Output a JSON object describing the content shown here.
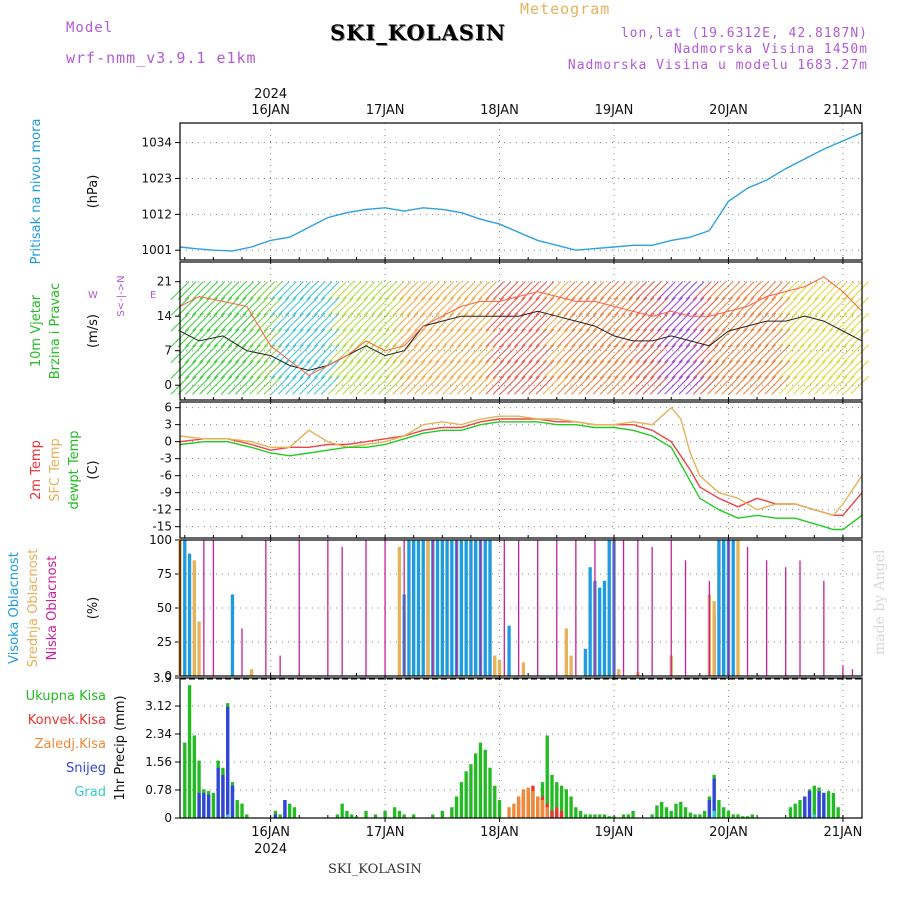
{
  "header": {
    "model_label": "Model",
    "model_name": "wrf-nmm_v3.9.1 e1km",
    "title": "SKI_KOLASIN",
    "meteogram_label": "Meteogram",
    "lonlat": "lon,lat (19.6312E, 42.8187N)",
    "elevation": "Nadmorska Visina 1450m",
    "model_elevation": "Nadmorska Visina u modelu 1683.27m"
  },
  "footer": {
    "station": "SKI_KOLASIN",
    "credit": "made by Angel"
  },
  "time_axis": {
    "year": "2024",
    "days": [
      "16JAN",
      "17JAN",
      "18JAN",
      "19JAN",
      "20JAN",
      "21JAN"
    ],
    "start_hour": -19,
    "end_hour": 124
  },
  "chart_data": [
    {
      "type": "line",
      "id": "pressure",
      "ylabel": "(hPa)",
      "side_labels": [
        {
          "text": "Pritisak na nivou mora",
          "color": "#1f9ce0"
        }
      ],
      "ylim": [
        998,
        1040
      ],
      "yticks": [
        "1001",
        "1012",
        "1023",
        "1034"
      ],
      "grid": true,
      "series": [
        {
          "color": "#2ea0e0",
          "x": [
            -19,
            -16,
            -12,
            -8,
            -4,
            0,
            4,
            8,
            12,
            16,
            20,
            24,
            28,
            32,
            36,
            40,
            44,
            48,
            52,
            56,
            60,
            64,
            68,
            72,
            76,
            80,
            84,
            88,
            92,
            96,
            100,
            104,
            108,
            112,
            116,
            120,
            124
          ],
          "y": [
            1002,
            1001.5,
            1001,
            1000.8,
            1002,
            1004,
            1005,
            1008,
            1011,
            1012.5,
            1013.5,
            1014,
            1013,
            1014,
            1013.5,
            1012.5,
            1010.5,
            1009,
            1006.5,
            1004,
            1002.5,
            1001,
            1001.5,
            1002,
            1002.5,
            1002.5,
            1004,
            1005,
            1007,
            1016,
            1020,
            1022.5,
            1026,
            1029,
            1032,
            1034.5,
            1037
          ]
        }
      ]
    },
    {
      "type": "line",
      "id": "wind",
      "ylabel": "(m/s)",
      "side_labels": [
        {
          "text": "10m Vjetar",
          "color": "#22bb22"
        },
        {
          "text": "Brzina i Pravac",
          "color": "#22bb22"
        }
      ],
      "legend_compass": {
        "n": "N",
        "e": "E",
        "w": "W",
        "s": "S",
        "mid": "<-|->"
      },
      "ylim": [
        -3,
        25
      ],
      "yticks": [
        "0",
        "7",
        "14",
        "21"
      ],
      "grid": true,
      "series": [
        {
          "color": "#222222",
          "x": [
            -19,
            -15,
            -10,
            -5,
            0,
            4,
            8,
            12,
            16,
            20,
            24,
            28,
            32,
            36,
            40,
            44,
            48,
            52,
            56,
            60,
            64,
            68,
            72,
            76,
            80,
            84,
            88,
            92,
            96,
            100,
            104,
            108,
            112,
            116,
            120,
            124
          ],
          "y": [
            11,
            9,
            10,
            7,
            6,
            4,
            3,
            4,
            6,
            8,
            6,
            7,
            12,
            13,
            14,
            14,
            14,
            14,
            15,
            14,
            13,
            12,
            10,
            9,
            9,
            10,
            9,
            8,
            11,
            12,
            13,
            13,
            14,
            13,
            11,
            9
          ]
        },
        {
          "color": "#ff6040",
          "x": [
            -19,
            -15,
            -10,
            -5,
            0,
            4,
            8,
            12,
            16,
            20,
            24,
            28,
            32,
            36,
            40,
            44,
            48,
            52,
            56,
            60,
            64,
            68,
            72,
            76,
            80,
            84,
            88,
            92,
            96,
            100,
            104,
            108,
            112,
            116,
            120,
            124
          ],
          "y": [
            16,
            18,
            17,
            16,
            8,
            5,
            2,
            4,
            6,
            9,
            7,
            8,
            12,
            14,
            16,
            17,
            17,
            18,
            19,
            18,
            17,
            17,
            16,
            15,
            14,
            15,
            14,
            14,
            15,
            16,
            18,
            19,
            20,
            22,
            19,
            15
          ]
        }
      ]
    },
    {
      "type": "line",
      "id": "temperature",
      "ylabel": "(C)",
      "side_labels": [
        {
          "text": "2m Temp",
          "color": "#ee3333"
        },
        {
          "text": "SFC Temp",
          "color": "#e6b25a"
        },
        {
          "text": "dewpt Temp",
          "color": "#22bb22"
        }
      ],
      "ylim": [
        -17,
        7
      ],
      "yticks": [
        "-15",
        "-12",
        "-9",
        "-6",
        "-3",
        "0",
        "3",
        "6"
      ],
      "grid": true,
      "series": [
        {
          "color": "#ee4444",
          "x": [
            -19,
            -14,
            -9,
            -4,
            0,
            4,
            8,
            12,
            16,
            20,
            24,
            28,
            32,
            36,
            40,
            44,
            48,
            52,
            56,
            60,
            64,
            68,
            72,
            76,
            80,
            84,
            88,
            90,
            94,
            98,
            102,
            106,
            110,
            114,
            118,
            120,
            124
          ],
          "y": [
            0,
            0.5,
            0.5,
            -0.5,
            -1.5,
            -1,
            -1,
            -0.5,
            -0.5,
            0,
            0.5,
            1,
            2,
            2.5,
            2.5,
            3.5,
            4,
            4,
            4,
            3.5,
            3.5,
            3,
            3,
            3,
            2,
            0,
            -5,
            -8,
            -10,
            -11.5,
            -10,
            -11,
            -11,
            -12,
            -13,
            -13,
            -9
          ]
        },
        {
          "color": "#e6b25a",
          "x": [
            -19,
            -14,
            -9,
            -4,
            0,
            4,
            8,
            12,
            16,
            20,
            24,
            28,
            32,
            36,
            40,
            44,
            48,
            52,
            56,
            60,
            64,
            68,
            72,
            76,
            80,
            84,
            86,
            88,
            90,
            94,
            98,
            102,
            106,
            110,
            114,
            118,
            120,
            124
          ],
          "y": [
            1,
            0.5,
            0.5,
            0,
            -1,
            -1,
            2,
            0,
            -1,
            -0.5,
            0,
            1,
            3,
            3.5,
            3,
            4,
            4.5,
            4.5,
            4,
            4,
            3.5,
            3,
            3,
            3.5,
            3,
            6,
            4,
            -2,
            -6,
            -9,
            -10,
            -12,
            -11,
            -11,
            -12,
            -13,
            -11,
            -6
          ]
        },
        {
          "color": "#22cc22",
          "x": [
            -19,
            -14,
            -9,
            -4,
            0,
            4,
            8,
            12,
            16,
            20,
            24,
            28,
            32,
            36,
            40,
            44,
            48,
            52,
            56,
            60,
            64,
            68,
            72,
            76,
            80,
            84,
            88,
            90,
            94,
            98,
            102,
            106,
            110,
            114,
            118,
            120,
            124
          ],
          "y": [
            -0.5,
            0,
            0,
            -1,
            -2,
            -2.5,
            -2,
            -1.5,
            -1,
            -1,
            -0.5,
            0.5,
            1.5,
            2,
            2,
            3,
            3.5,
            3.5,
            3.5,
            3,
            3,
            2.5,
            2.5,
            2,
            1,
            -1,
            -7,
            -10,
            -12,
            -13.5,
            -13,
            -13.5,
            -13.5,
            -14.5,
            -15.5,
            -15.5,
            -13
          ]
        }
      ]
    },
    {
      "type": "bar",
      "id": "cloud",
      "ylabel": "(%)",
      "side_labels": [
        {
          "text": "Visoka Oblacnost",
          "color": "#1f9ce0"
        },
        {
          "text": "Srednja Oblacnost",
          "color": "#e6b25a"
        },
        {
          "text": "Niska Oblacnost",
          "color": "#c8209a"
        }
      ],
      "ylim": [
        0,
        100
      ],
      "yticks": [
        "0",
        "25",
        "50",
        "75",
        "100"
      ],
      "grid": true,
      "series": [
        {
          "name": "high",
          "color": "#1f9ce0",
          "x": [
            -18,
            -17,
            -8,
            28,
            29,
            30,
            31,
            32,
            33,
            34,
            35,
            36,
            37,
            38,
            39,
            40,
            41,
            42,
            43,
            44,
            45,
            46,
            50,
            66,
            67,
            68,
            69,
            70,
            71,
            72,
            93,
            94,
            95,
            96,
            97
          ],
          "y": [
            100,
            90,
            60,
            60,
            100,
            100,
            100,
            100,
            100,
            100,
            100,
            100,
            100,
            100,
            100,
            100,
            100,
            100,
            100,
            100,
            100,
            100,
            37,
            20,
            80,
            70,
            65,
            70,
            100,
            100,
            45,
            100,
            100,
            100,
            100
          ]
        },
        {
          "name": "mid",
          "color": "#e6b25a",
          "x": [
            -19,
            -16,
            -15,
            -4,
            27,
            33,
            47,
            48,
            53,
            62,
            63,
            73,
            77,
            84,
            92,
            93,
            98
          ],
          "y": [
            100,
            85,
            40,
            5,
            95,
            100,
            15,
            12,
            10,
            35,
            15,
            5,
            3,
            15,
            60,
            55,
            100
          ]
        },
        {
          "name": "low",
          "color": "#c8209a",
          "x": [
            -19,
            -14,
            -12,
            -6,
            -1,
            2,
            6,
            12,
            15,
            20,
            24,
            28,
            34,
            39,
            44,
            49,
            52,
            56,
            60,
            64,
            68,
            72,
            74,
            77,
            80,
            84,
            87,
            92,
            96,
            100,
            104,
            108,
            111,
            116,
            120,
            122
          ],
          "y": [
            100,
            100,
            100,
            35,
            100,
            15,
            100,
            100,
            95,
            100,
            100,
            100,
            100,
            100,
            100,
            100,
            100,
            100,
            100,
            100,
            100,
            100,
            100,
            100,
            95,
            100,
            85,
            70,
            100,
            95,
            85,
            80,
            85,
            70,
            8,
            5
          ]
        }
      ]
    },
    {
      "type": "bar",
      "id": "precip",
      "ylabel": "1hr Precip (mm)",
      "side_labels": [
        {
          "text": "Ukupna Kisa",
          "color": "#22bb22"
        },
        {
          "text": "Konvek.Kisa",
          "color": "#ee3333"
        },
        {
          "text": "Zaledj.Kisa",
          "color": "#f08a3a"
        },
        {
          "text": "Snijeg",
          "color": "#3344dd"
        },
        {
          "text": "Grad",
          "color": "#33cccc"
        }
      ],
      "ylim": [
        0,
        3.9
      ],
      "yticks": [
        "0",
        "0.78",
        "1.56",
        "2.34",
        "3.12",
        "3.9"
      ],
      "grid": true,
      "series": [
        {
          "name": "total",
          "color": "#22bb22",
          "x": [
            -18,
            -17,
            -16,
            -15,
            -14,
            -13,
            -12,
            -11,
            -10,
            -9,
            -8,
            -7,
            -6,
            -5,
            1,
            2,
            3,
            4,
            5,
            14,
            15,
            16,
            17,
            18,
            20,
            22,
            24,
            26,
            27,
            28,
            30,
            34,
            36,
            38,
            39,
            40,
            41,
            42,
            43,
            44,
            45,
            46,
            47,
            48,
            54,
            55,
            56,
            57,
            58,
            59,
            60,
            61,
            62,
            63,
            64,
            65,
            66,
            67,
            68,
            69,
            70,
            71,
            72,
            74,
            75,
            76,
            80,
            81,
            82,
            83,
            84,
            85,
            86,
            87,
            88,
            89,
            90,
            91,
            92,
            93,
            94,
            95,
            96,
            97,
            98,
            99,
            100,
            101,
            109,
            110,
            111,
            112,
            113,
            114,
            115,
            116,
            117,
            118,
            119
          ],
          "y": [
            2.1,
            3.7,
            2.3,
            1.6,
            0.8,
            0.75,
            0.7,
            1.6,
            1.4,
            3.2,
            1.0,
            0.5,
            0.4,
            0.1,
            0.2,
            0.1,
            0.5,
            0.4,
            0.3,
            0.1,
            0.4,
            0.2,
            0.1,
            0.05,
            0.2,
            0.1,
            0.2,
            0.3,
            0.2,
            0.1,
            0.1,
            0.1,
            0.2,
            0.3,
            0.6,
            1.0,
            1.3,
            1.5,
            1.8,
            2.1,
            1.9,
            1.4,
            0.9,
            0.5,
            0.7,
            0.8,
            0.6,
            1.0,
            2.3,
            1.2,
            1.0,
            0.9,
            0.8,
            0.6,
            0.3,
            0.2,
            0.1,
            0.1,
            0.1,
            0.1,
            0.1,
            0.05,
            0.05,
            0.1,
            0.1,
            0.2,
            0.1,
            0.35,
            0.45,
            0.3,
            0.2,
            0.4,
            0.45,
            0.3,
            0.15,
            0.1,
            0.1,
            0.2,
            0.6,
            1.2,
            0.5,
            0.3,
            0.2,
            0.1,
            0.1,
            0.05,
            0.05,
            0.1,
            0.3,
            0.4,
            0.5,
            0.6,
            0.8,
            0.9,
            0.85,
            0.7,
            0.75,
            0.7,
            0.3
          ]
        },
        {
          "name": "convective",
          "color": "#ee3333",
          "x": [
            52,
            53,
            54,
            55,
            56,
            57,
            58,
            59,
            60,
            61
          ],
          "y": [
            0.5,
            0.7,
            0.8,
            0.9,
            0.3,
            0.6,
            0.4,
            0.2,
            0.3,
            0.2
          ]
        },
        {
          "name": "freezing",
          "color": "#f08a3a",
          "x": [
            50,
            51,
            52,
            53,
            54,
            55,
            56,
            57,
            58
          ],
          "y": [
            0.3,
            0.4,
            0.6,
            0.8,
            0.85,
            0.75,
            0.6,
            0.5,
            0.3
          ]
        },
        {
          "name": "snow",
          "color": "#3344dd",
          "x": [
            -15,
            -14,
            -13,
            -11,
            -10,
            -9,
            -8,
            1,
            3,
            92,
            93,
            112,
            113,
            115,
            116
          ],
          "y": [
            0.7,
            0.7,
            0.65,
            1.4,
            1.2,
            3.1,
            0.9,
            0.1,
            0.5,
            0.5,
            1.1,
            0.6,
            0.75,
            0.75,
            0.7
          ]
        },
        {
          "name": "graupel",
          "color": "#33cccc",
          "x": [
            -9,
            93,
            114
          ],
          "y": [
            0.1,
            0.2,
            0.1
          ]
        }
      ]
    }
  ]
}
